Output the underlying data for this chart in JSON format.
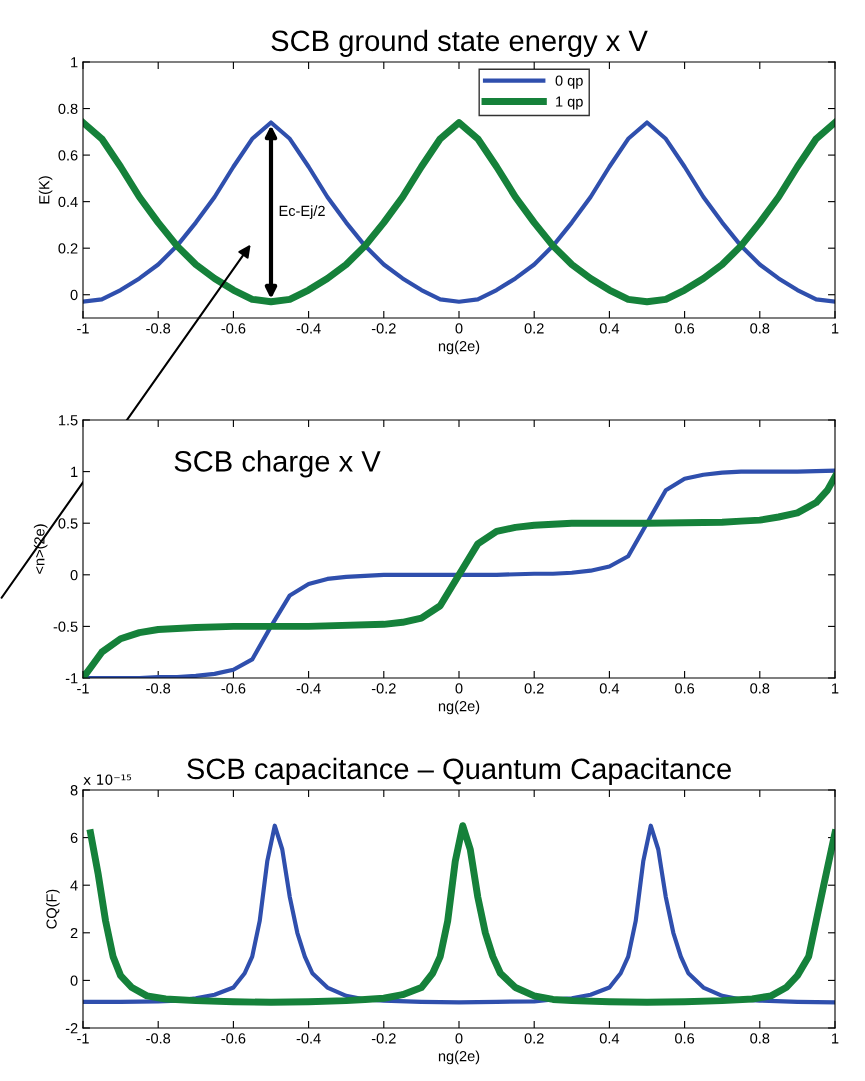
{
  "chart_data": [
    {
      "type": "line",
      "title": "SCB ground state energy x V",
      "xlabel": "ng(2e)",
      "ylabel": "E(K)",
      "xlim": [
        -1,
        1
      ],
      "xticks": [
        -1,
        -0.8,
        -0.6,
        -0.4,
        -0.2,
        0,
        0.2,
        0.4,
        0.6,
        0.8,
        1
      ],
      "ylim": [
        -0.1,
        1
      ],
      "yticks": [
        0,
        0.2,
        0.4,
        0.6,
        0.8,
        1
      ],
      "grid": false,
      "legend": "top",
      "marker": "none",
      "line_style": "solid",
      "x": [
        -1,
        -0.95,
        -0.9,
        -0.85,
        -0.8,
        -0.75,
        -0.7,
        -0.65,
        -0.6,
        -0.55,
        -0.5,
        -0.45,
        -0.4,
        -0.35,
        -0.3,
        -0.25,
        -0.2,
        -0.15,
        -0.1,
        -0.05,
        0,
        0.05,
        0.1,
        0.15,
        0.2,
        0.25,
        0.3,
        0.35,
        0.4,
        0.45,
        0.5,
        0.55,
        0.6,
        0.65,
        0.7,
        0.75,
        0.8,
        0.85,
        0.9,
        0.95,
        1
      ],
      "series": [
        {
          "name": "0 qp",
          "color": "#2f4fad",
          "values": [
            -0.03,
            -0.02,
            0.02,
            0.07,
            0.13,
            0.21,
            0.31,
            0.42,
            0.55,
            0.67,
            0.74,
            0.67,
            0.55,
            0.42,
            0.31,
            0.21,
            0.13,
            0.07,
            0.02,
            -0.02,
            -0.03,
            -0.02,
            0.02,
            0.07,
            0.13,
            0.21,
            0.31,
            0.42,
            0.55,
            0.67,
            0.74,
            0.67,
            0.55,
            0.42,
            0.31,
            0.21,
            0.13,
            0.07,
            0.02,
            -0.02,
            -0.03
          ]
        },
        {
          "name": "1 qp",
          "color": "#15813a",
          "values": [
            0.74,
            0.67,
            0.55,
            0.42,
            0.31,
            0.21,
            0.13,
            0.07,
            0.02,
            -0.02,
            -0.03,
            -0.02,
            0.02,
            0.07,
            0.13,
            0.21,
            0.31,
            0.42,
            0.55,
            0.67,
            0.74,
            0.67,
            0.55,
            0.42,
            0.31,
            0.21,
            0.13,
            0.07,
            0.02,
            -0.02,
            -0.03,
            -0.02,
            0.02,
            0.07,
            0.13,
            0.21,
            0.31,
            0.42,
            0.55,
            0.67,
            0.74
          ]
        }
      ],
      "annotations": [
        "Ec-Ej/2"
      ]
    },
    {
      "type": "line",
      "title": "SCB charge x V",
      "xlabel": "ng(2e)",
      "ylabel": "<n>(2e)",
      "xlim": [
        -1,
        1
      ],
      "xticks": [
        -1,
        -0.8,
        -0.6,
        -0.4,
        -0.2,
        0,
        0.2,
        0.4,
        0.6,
        0.8,
        1
      ],
      "ylim": [
        -1,
        1.5
      ],
      "yticks": [
        -1,
        -0.5,
        0,
        0.5,
        1,
        1.5
      ],
      "grid": false,
      "marker": "none",
      "line_style": "solid",
      "series": [
        {
          "color": "#2f4fad",
          "x": [
            -1,
            -0.95,
            -0.9,
            -0.85,
            -0.8,
            -0.75,
            -0.7,
            -0.65,
            -0.6,
            -0.55,
            -0.5,
            -0.45,
            -0.4,
            -0.35,
            -0.3,
            -0.25,
            -0.2,
            -0.1,
            0,
            0.1,
            0.2,
            0.25,
            0.3,
            0.35,
            0.4,
            0.45,
            0.5,
            0.55,
            0.6,
            0.65,
            0.7,
            0.75,
            0.8,
            0.9,
            1
          ],
          "values": [
            -1,
            -1,
            -1,
            -1,
            -0.99,
            -0.99,
            -0.98,
            -0.96,
            -0.92,
            -0.82,
            -0.5,
            -0.2,
            -0.09,
            -0.04,
            -0.02,
            -0.01,
            0,
            0,
            0,
            0,
            0.01,
            0.01,
            0.02,
            0.04,
            0.08,
            0.18,
            0.5,
            0.82,
            0.93,
            0.97,
            0.99,
            1,
            1,
            1,
            1.01
          ]
        },
        {
          "color": "#15813a",
          "x": [
            -1,
            -0.98,
            -0.95,
            -0.9,
            -0.85,
            -0.8,
            -0.75,
            -0.7,
            -0.6,
            -0.4,
            -0.2,
            -0.15,
            -0.1,
            -0.05,
            0,
            0.05,
            0.1,
            0.15,
            0.2,
            0.3,
            0.5,
            0.7,
            0.75,
            0.8,
            0.85,
            0.9,
            0.95,
            0.98,
            1
          ],
          "values": [
            -1,
            -0.9,
            -0.75,
            -0.62,
            -0.56,
            -0.53,
            -0.52,
            -0.51,
            -0.5,
            -0.5,
            -0.48,
            -0.46,
            -0.42,
            -0.3,
            0,
            0.3,
            0.42,
            0.46,
            0.48,
            0.5,
            0.5,
            0.51,
            0.52,
            0.53,
            0.56,
            0.6,
            0.7,
            0.82,
            0.95
          ]
        }
      ]
    },
    {
      "type": "line",
      "title": "SCB capacitance – Quantum Capacitance",
      "xlabel": "ng(2e)",
      "ylabel": "CQ(F)",
      "xlim": [
        -1,
        1
      ],
      "xticks": [
        -1,
        -0.8,
        -0.6,
        -0.4,
        -0.2,
        0,
        0.2,
        0.4,
        0.6,
        0.8,
        1
      ],
      "ylim": [
        -2,
        8
      ],
      "yticks": [
        -2,
        0,
        2,
        4,
        6,
        8
      ],
      "grid": false,
      "marker": "none",
      "line_style": "solid",
      "annotations": [
        "x 10⁻¹⁵"
      ],
      "series": [
        {
          "color": "#2f4fad",
          "x": [
            -1,
            -0.9,
            -0.8,
            -0.75,
            -0.7,
            -0.65,
            -0.6,
            -0.57,
            -0.55,
            -0.53,
            -0.51,
            -0.49,
            -0.47,
            -0.45,
            -0.43,
            -0.41,
            -0.39,
            -0.35,
            -0.3,
            -0.25,
            -0.2,
            -0.1,
            0,
            0.1,
            0.2,
            0.25,
            0.3,
            0.35,
            0.4,
            0.43,
            0.45,
            0.47,
            0.49,
            0.51,
            0.53,
            0.55,
            0.57,
            0.59,
            0.61,
            0.65,
            0.7,
            0.75,
            0.8,
            0.9,
            1
          ],
          "values": [
            -0.9,
            -0.9,
            -0.88,
            -0.85,
            -0.75,
            -0.6,
            -0.3,
            0.3,
            1.0,
            2.5,
            5.0,
            6.5,
            5.5,
            3.5,
            2.0,
            1.0,
            0.3,
            -0.3,
            -0.65,
            -0.8,
            -0.85,
            -0.9,
            -0.92,
            -0.9,
            -0.88,
            -0.8,
            -0.75,
            -0.6,
            -0.3,
            0.3,
            1.0,
            2.5,
            5.0,
            6.5,
            5.5,
            3.5,
            2.0,
            1.0,
            0.3,
            -0.3,
            -0.65,
            -0.8,
            -0.85,
            -0.9,
            -0.92
          ]
        },
        {
          "color": "#15813a",
          "x": [
            -0.98,
            -0.96,
            -0.94,
            -0.92,
            -0.9,
            -0.87,
            -0.83,
            -0.78,
            -0.7,
            -0.6,
            -0.5,
            -0.4,
            -0.3,
            -0.25,
            -0.2,
            -0.15,
            -0.1,
            -0.07,
            -0.05,
            -0.03,
            -0.01,
            0.01,
            0.03,
            0.05,
            0.07,
            0.09,
            0.11,
            0.15,
            0.2,
            0.25,
            0.3,
            0.4,
            0.5,
            0.6,
            0.7,
            0.78,
            0.83,
            0.87,
            0.9,
            0.93,
            0.95,
            0.97,
            1
          ],
          "values": [
            6.2,
            4.5,
            2.5,
            1.0,
            0.2,
            -0.3,
            -0.65,
            -0.78,
            -0.85,
            -0.9,
            -0.92,
            -0.9,
            -0.85,
            -0.8,
            -0.75,
            -0.6,
            -0.3,
            0.3,
            1.0,
            2.5,
            5.0,
            6.5,
            5.5,
            3.5,
            2.0,
            1.0,
            0.3,
            -0.3,
            -0.65,
            -0.8,
            -0.85,
            -0.9,
            -0.92,
            -0.9,
            -0.85,
            -0.78,
            -0.65,
            -0.3,
            0.2,
            1.0,
            2.5,
            4.0,
            6.2
          ]
        }
      ]
    }
  ]
}
